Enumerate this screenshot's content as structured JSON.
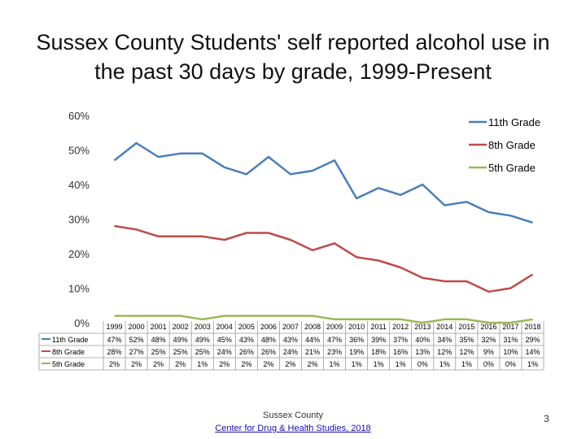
{
  "slide": {
    "title_line1": "Sussex County Students' self reported alcohol use in",
    "title_line2": "the past 30 days by grade, 1999-Present",
    "footer_source": "Sussex County",
    "footer_link": "Center for Drug & Health Studies, 2018",
    "page_number": "3"
  },
  "chart_data": {
    "type": "line",
    "title": "",
    "xlabel": "",
    "ylabel": "",
    "ylim": [
      0,
      60
    ],
    "y_ticks": [
      "0%",
      "10%",
      "20%",
      "30%",
      "40%",
      "50%",
      "60%"
    ],
    "grid": false,
    "legend_position": "top-right",
    "categories": [
      "1999",
      "2000",
      "2001",
      "2002",
      "2003",
      "2004",
      "2005",
      "2006",
      "2007",
      "2008",
      "2009",
      "2010",
      "2011",
      "2012",
      "2013",
      "2014",
      "2015",
      "2016",
      "2017",
      "2018"
    ],
    "series": [
      {
        "name": "11th Grade",
        "color": "#4a7ebb",
        "values": [
          47,
          52,
          48,
          49,
          49,
          45,
          43,
          48,
          43,
          44,
          47,
          36,
          39,
          37,
          40,
          34,
          35,
          32,
          31,
          29
        ],
        "labels": [
          "47%",
          "52%",
          "48%",
          "49%",
          "49%",
          "45%",
          "43%",
          "48%",
          "43%",
          "44%",
          "47%",
          "36%",
          "39%",
          "37%",
          "40%",
          "34%",
          "35%",
          "32%",
          "31%",
          "29%"
        ]
      },
      {
        "name": "8th Grade",
        "color": "#be4b48",
        "values": [
          28,
          27,
          25,
          25,
          25,
          24,
          26,
          26,
          24,
          21,
          23,
          19,
          18,
          16,
          13,
          12,
          12,
          9,
          10,
          14
        ],
        "labels": [
          "28%",
          "27%",
          "25%",
          "25%",
          "25%",
          "24%",
          "26%",
          "26%",
          "24%",
          "21%",
          "23%",
          "19%",
          "18%",
          "16%",
          "13%",
          "12%",
          "12%",
          "9%",
          "10%",
          "14%"
        ]
      },
      {
        "name": "5th Grade",
        "color": "#98b954",
        "values": [
          2,
          2,
          2,
          2,
          1,
          2,
          2,
          2,
          2,
          2,
          1,
          1,
          1,
          1,
          0,
          1,
          1,
          0,
          0,
          1
        ],
        "labels": [
          "2%",
          "2%",
          "2%",
          "2%",
          "1%",
          "2%",
          "2%",
          "2%",
          "2%",
          "2%",
          "1%",
          "1%",
          "1%",
          "1%",
          "0%",
          "1%",
          "1%",
          "0%",
          "0%",
          "1%"
        ]
      }
    ]
  }
}
